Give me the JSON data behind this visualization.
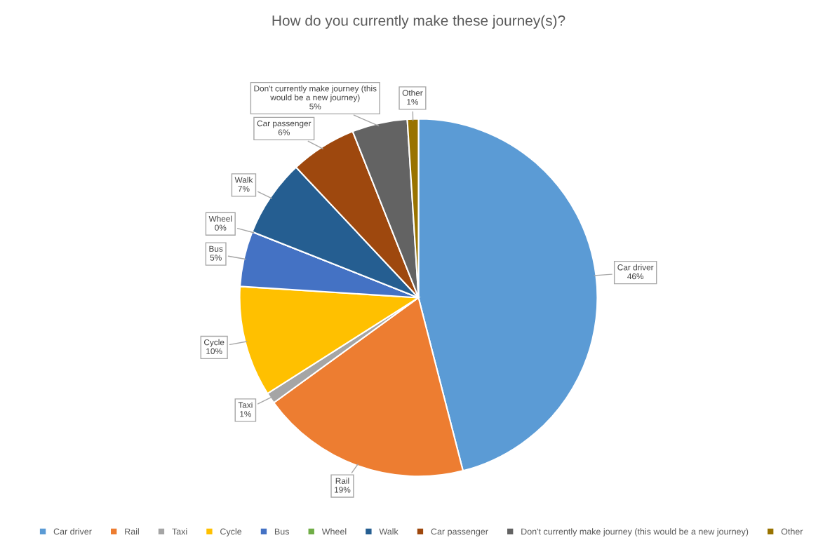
{
  "chart_data": {
    "type": "pie",
    "title": "How do you currently make these journey(s)?",
    "categories": [
      "Car driver",
      "Rail",
      "Taxi",
      "Cycle",
      "Bus",
      "Wheel",
      "Walk",
      "Car passenger",
      "Don't currently make journey (this would be a new journey)",
      "Other"
    ],
    "values": [
      46,
      19,
      1,
      10,
      5,
      0,
      7,
      6,
      5,
      1
    ],
    "value_labels": [
      "46%",
      "19%",
      "1%",
      "10%",
      "5%",
      "0%",
      "7%",
      "6%",
      "5%",
      "1%"
    ],
    "colors": [
      "#5b9bd5",
      "#ed7d31",
      "#a5a5a5",
      "#ffc000",
      "#4472c4",
      "#70ad47",
      "#255e91",
      "#9e480e",
      "#636363",
      "#997300"
    ],
    "legend": "bottom"
  }
}
